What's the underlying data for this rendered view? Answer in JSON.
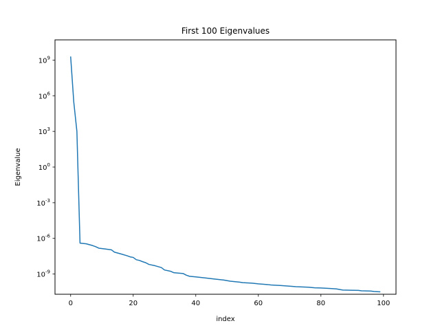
{
  "chart_data": {
    "type": "line",
    "title": "First 100 Eigenvalues",
    "xlabel": "index",
    "ylabel": "Eigenvalue",
    "yscale": "log",
    "xlim": [
      -5,
      104
    ],
    "ylim": [
      2e-11,
      50000000000.0
    ],
    "xticks": [
      0,
      20,
      40,
      60,
      80,
      100
    ],
    "yticks": [
      {
        "value": 1000000000.0,
        "label": "10^9"
      },
      {
        "value": 1000000.0,
        "label": "10^6"
      },
      {
        "value": 1000.0,
        "label": "10^3"
      },
      {
        "value": 1,
        "label": "10^0"
      },
      {
        "value": 0.001,
        "label": "10^-3"
      },
      {
        "value": 1e-06,
        "label": "10^-6"
      },
      {
        "value": 1e-09,
        "label": "10^-9"
      }
    ],
    "grid": false,
    "colors": {
      "line": "#1f77b4",
      "axis": "#000000",
      "background": "#ffffff"
    },
    "series": [
      {
        "points": [
          [
            0,
            2000000000.0
          ],
          [
            1,
            300000.0
          ],
          [
            2,
            1000.0
          ],
          [
            3,
            4e-07
          ],
          [
            5,
            3.5e-07
          ],
          [
            7,
            2.5e-07
          ],
          [
            8,
            2e-07
          ],
          [
            9,
            1.5e-07
          ],
          [
            11,
            1.3e-07
          ],
          [
            13,
            1.1e-07
          ],
          [
            14,
            7e-08
          ],
          [
            16,
            5e-08
          ],
          [
            18,
            3.5e-08
          ],
          [
            19,
            2.8e-08
          ],
          [
            20,
            2.5e-08
          ],
          [
            21,
            1.6e-08
          ],
          [
            22,
            1.4e-08
          ],
          [
            23,
            1.1e-08
          ],
          [
            24,
            9e-09
          ],
          [
            25,
            6.5e-09
          ],
          [
            27,
            5e-09
          ],
          [
            29,
            3.5e-09
          ],
          [
            30,
            2.2e-09
          ],
          [
            32,
            1.7e-09
          ],
          [
            33,
            1.3e-09
          ],
          [
            36,
            1.1e-09
          ],
          [
            37,
            8e-10
          ],
          [
            38,
            6.5e-10
          ],
          [
            40,
            5.8e-10
          ],
          [
            43,
            4.7e-10
          ],
          [
            46,
            3.8e-10
          ],
          [
            49,
            3.1e-10
          ],
          [
            51,
            2.5e-10
          ],
          [
            54,
            2.1e-10
          ],
          [
            55,
            1.9e-10
          ],
          [
            58,
            1.7e-10
          ],
          [
            60,
            1.5e-10
          ],
          [
            63,
            1.3e-10
          ],
          [
            64,
            1.2e-10
          ],
          [
            67,
            1.1e-10
          ],
          [
            70,
            9.5e-11
          ],
          [
            72,
            8.6e-11
          ],
          [
            76,
            7.8e-11
          ],
          [
            78,
            7e-11
          ],
          [
            80,
            6.7e-11
          ],
          [
            83,
            6.1e-11
          ],
          [
            85,
            5.6e-11
          ],
          [
            86,
            5e-11
          ],
          [
            87,
            4.5e-11
          ],
          [
            92,
            4.2e-11
          ],
          [
            93,
            3.9e-11
          ],
          [
            96,
            3.7e-11
          ],
          [
            97,
            3.4e-11
          ],
          [
            99,
            3.2e-11
          ]
        ]
      }
    ]
  }
}
